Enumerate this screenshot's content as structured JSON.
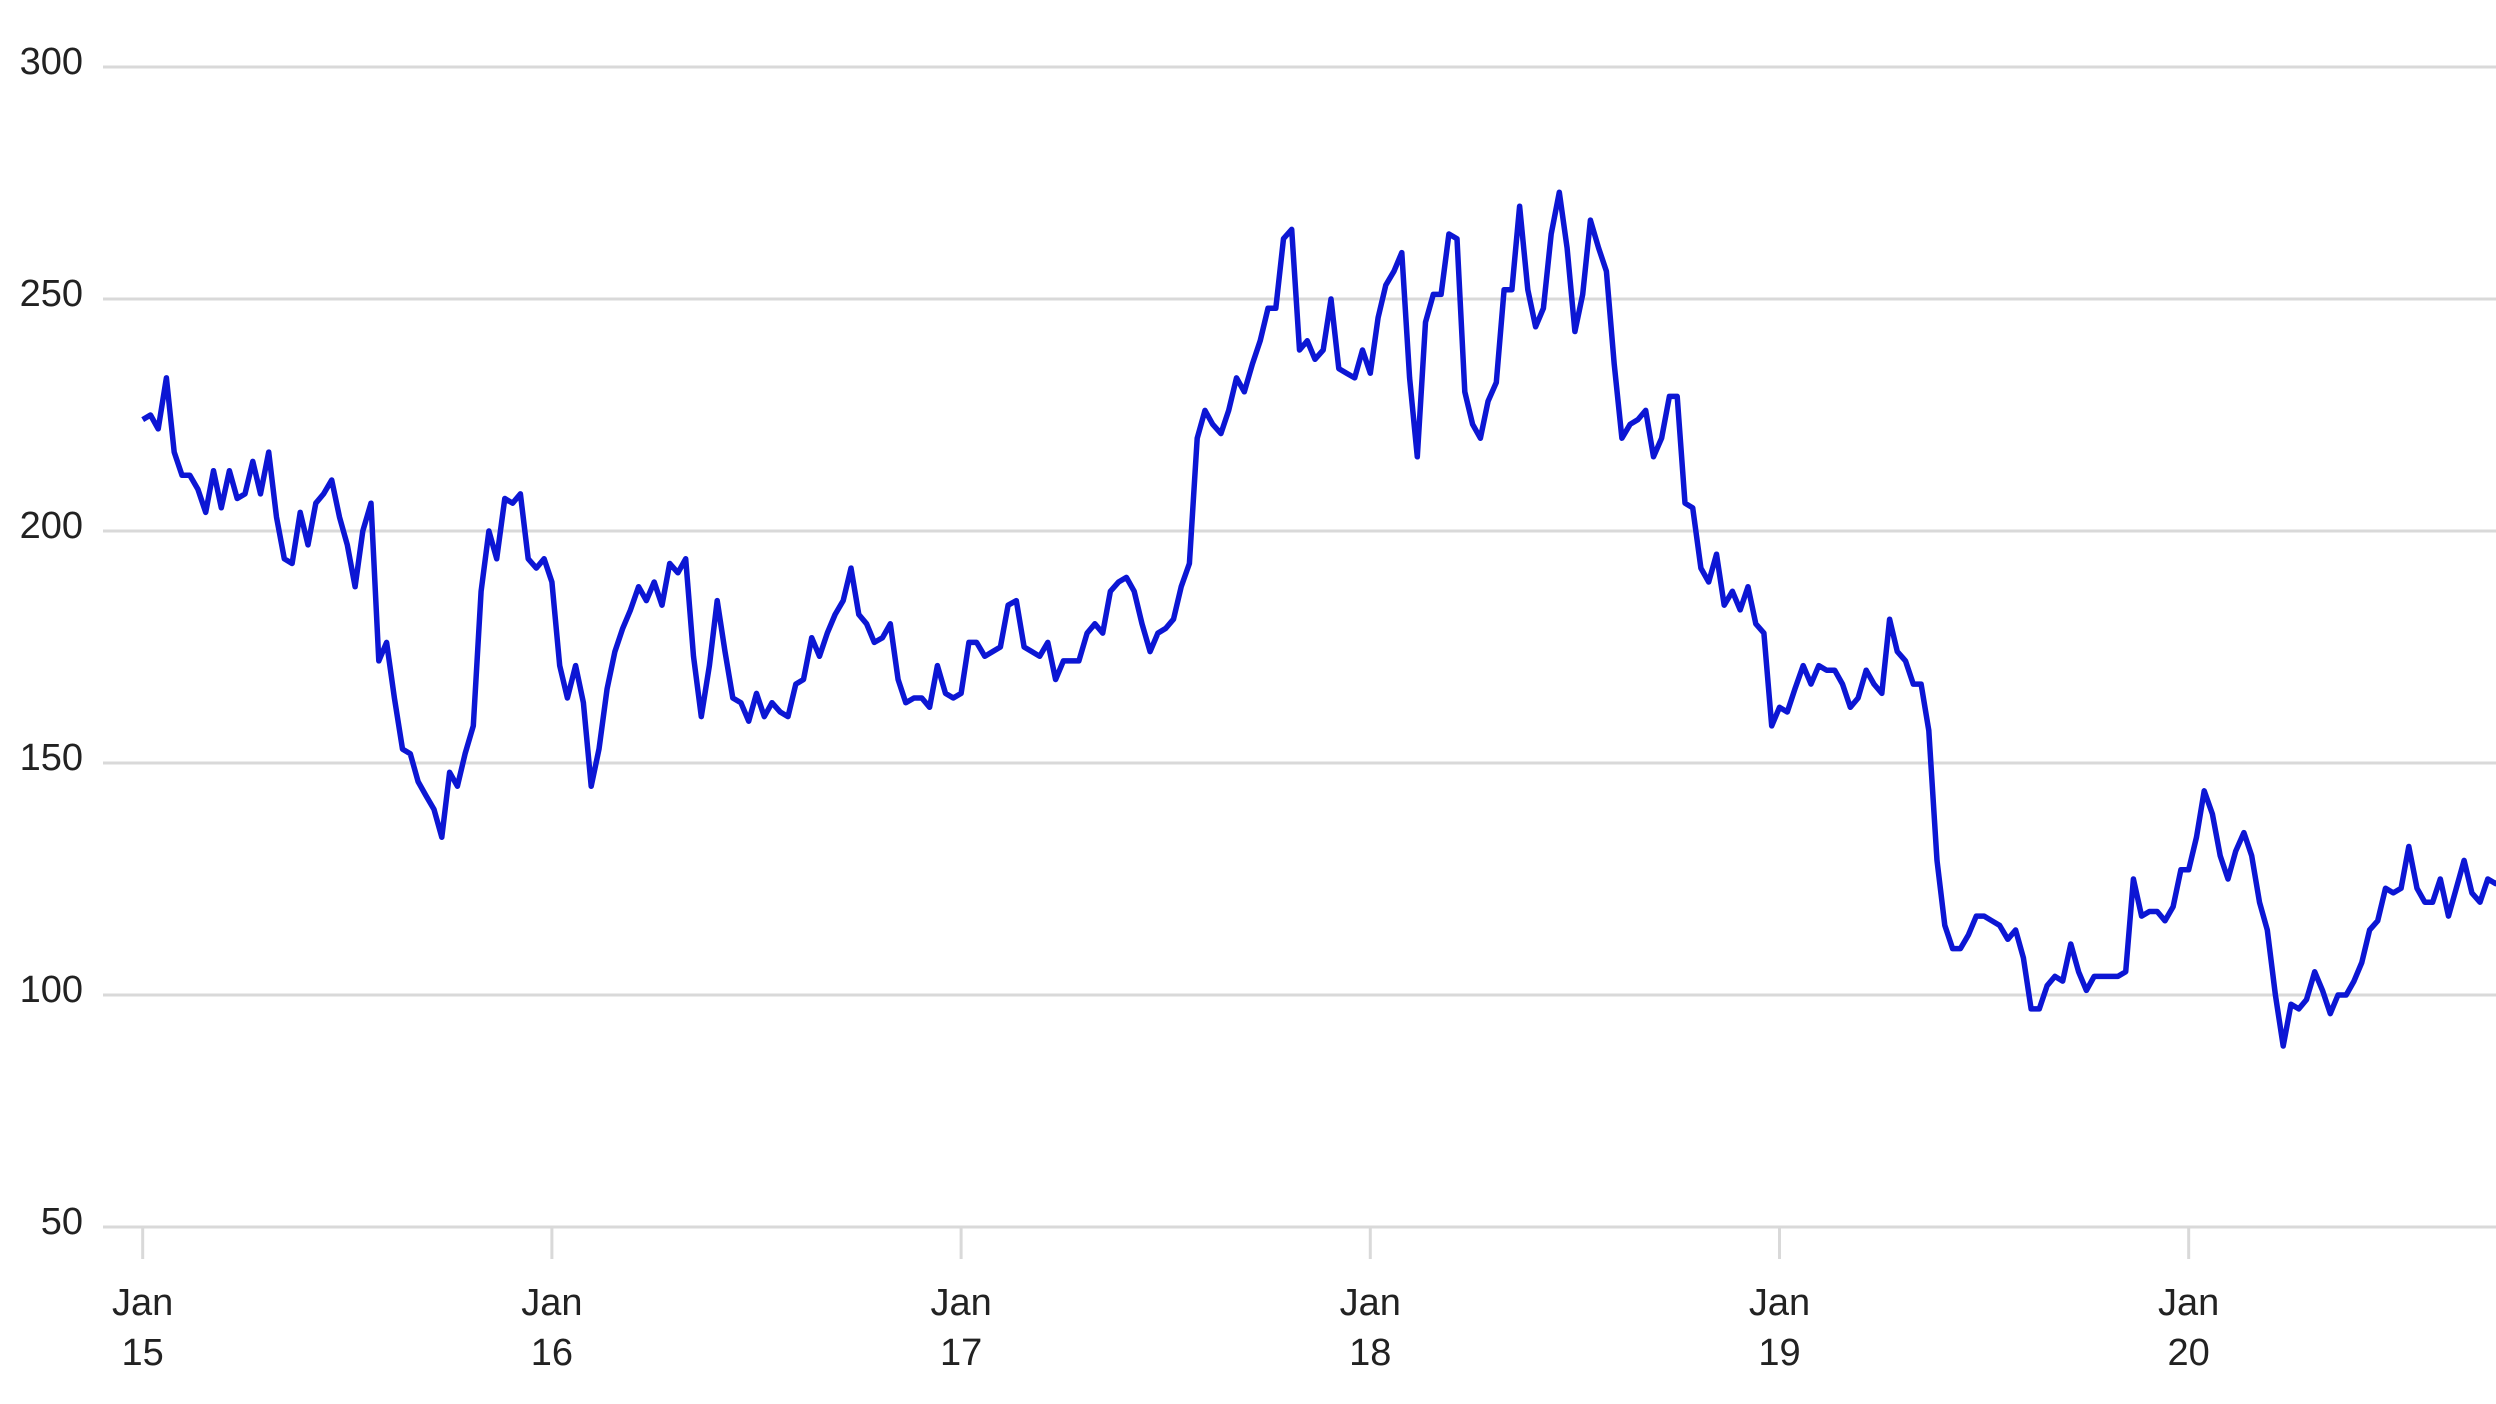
{
  "chart_data": {
    "type": "line",
    "color": "#0c16d4",
    "grid": true,
    "xlim": [
      2014.903,
      2020.751
    ],
    "ylim": [
      50,
      300
    ],
    "yticks": [
      50,
      100,
      150,
      200,
      250,
      300
    ],
    "xticks": [
      {
        "value": 2015,
        "label": "Jan 15"
      },
      {
        "value": 2016,
        "label": "Jan 16"
      },
      {
        "value": 2017,
        "label": "Jan 17"
      },
      {
        "value": 2018,
        "label": "Jan 18"
      },
      {
        "value": 2019,
        "label": "Jan 19"
      },
      {
        "value": 2020,
        "label": "Jan 20"
      }
    ],
    "x": [
      2015.0,
      2015.019,
      2015.038,
      2015.058,
      2015.077,
      2015.096,
      2015.115,
      2015.135,
      2015.154,
      2015.173,
      2015.192,
      2015.212,
      2015.231,
      2015.25,
      2015.269,
      2015.288,
      2015.308,
      2015.327,
      2015.346,
      2015.365,
      2015.385,
      2015.404,
      2015.423,
      2015.442,
      2015.462,
      2015.481,
      2015.5,
      2015.519,
      2015.538,
      2015.558,
      2015.577,
      2015.596,
      2015.615,
      2015.635,
      2015.654,
      2015.673,
      2015.692,
      2015.712,
      2015.731,
      2015.75,
      2015.769,
      2015.788,
      2015.808,
      2015.827,
      2015.846,
      2015.865,
      2015.885,
      2015.904,
      2015.923,
      2015.942,
      2015.962,
      2015.981,
      2016.0,
      2016.019,
      2016.038,
      2016.058,
      2016.077,
      2016.096,
      2016.115,
      2016.135,
      2016.154,
      2016.173,
      2016.192,
      2016.212,
      2016.231,
      2016.25,
      2016.269,
      2016.288,
      2016.308,
      2016.327,
      2016.346,
      2016.365,
      2016.385,
      2016.404,
      2016.423,
      2016.442,
      2016.462,
      2016.481,
      2016.5,
      2016.519,
      2016.538,
      2016.558,
      2016.577,
      2016.596,
      2016.615,
      2016.635,
      2016.654,
      2016.673,
      2016.692,
      2016.712,
      2016.731,
      2016.75,
      2016.769,
      2016.788,
      2016.808,
      2016.827,
      2016.846,
      2016.865,
      2016.885,
      2016.904,
      2016.923,
      2016.942,
      2016.962,
      2016.981,
      2017.0,
      2017.019,
      2017.038,
      2017.058,
      2017.077,
      2017.096,
      2017.115,
      2017.135,
      2017.154,
      2017.173,
      2017.192,
      2017.212,
      2017.231,
      2017.25,
      2017.269,
      2017.288,
      2017.308,
      2017.327,
      2017.346,
      2017.365,
      2017.385,
      2017.404,
      2017.423,
      2017.442,
      2017.462,
      2017.481,
      2017.5,
      2017.519,
      2017.538,
      2017.558,
      2017.577,
      2017.596,
      2017.615,
      2017.635,
      2017.654,
      2017.673,
      2017.692,
      2017.712,
      2017.731,
      2017.75,
      2017.769,
      2017.788,
      2017.808,
      2017.827,
      2017.846,
      2017.865,
      2017.885,
      2017.904,
      2017.923,
      2017.942,
      2017.962,
      2017.981,
      2018.0,
      2018.019,
      2018.038,
      2018.058,
      2018.077,
      2018.096,
      2018.115,
      2018.135,
      2018.154,
      2018.173,
      2018.192,
      2018.212,
      2018.231,
      2018.25,
      2018.269,
      2018.288,
      2018.308,
      2018.327,
      2018.346,
      2018.365,
      2018.385,
      2018.404,
      2018.423,
      2018.442,
      2018.462,
      2018.481,
      2018.5,
      2018.519,
      2018.538,
      2018.558,
      2018.577,
      2018.596,
      2018.615,
      2018.635,
      2018.654,
      2018.673,
      2018.692,
      2018.712,
      2018.731,
      2018.75,
      2018.769,
      2018.788,
      2018.808,
      2018.827,
      2018.846,
      2018.865,
      2018.885,
      2018.904,
      2018.923,
      2018.942,
      2018.962,
      2018.981,
      2019.0,
      2019.019,
      2019.038,
      2019.058,
      2019.077,
      2019.096,
      2019.115,
      2019.135,
      2019.154,
      2019.173,
      2019.192,
      2019.212,
      2019.231,
      2019.25,
      2019.269,
      2019.288,
      2019.308,
      2019.327,
      2019.346,
      2019.365,
      2019.385,
      2019.404,
      2019.423,
      2019.442,
      2019.462,
      2019.481,
      2019.5,
      2019.519,
      2019.538,
      2019.558,
      2019.577,
      2019.596,
      2019.615,
      2019.635,
      2019.654,
      2019.673,
      2019.692,
      2019.712,
      2019.731,
      2019.75,
      2019.769,
      2019.788,
      2019.808,
      2019.827,
      2019.846,
      2019.865,
      2019.885,
      2019.904,
      2019.923,
      2019.942,
      2019.962,
      2019.981,
      2020.0,
      2020.019,
      2020.038,
      2020.058,
      2020.077,
      2020.096,
      2020.115,
      2020.135,
      2020.154,
      2020.173,
      2020.192,
      2020.212,
      2020.231,
      2020.25,
      2020.269,
      2020.288,
      2020.308,
      2020.327,
      2020.346,
      2020.365,
      2020.385,
      2020.404,
      2020.423,
      2020.442,
      2020.462,
      2020.481,
      2020.5,
      2020.519,
      2020.538,
      2020.558,
      2020.577,
      2020.596,
      2020.615,
      2020.635,
      2020.654,
      2020.673,
      2020.692,
      2020.712,
      2020.731,
      2020.75,
      2020.769
    ],
    "values": [
      224,
      225,
      222,
      233,
      217,
      212,
      212,
      209,
      204,
      213,
      205,
      213,
      207,
      208,
      215,
      208,
      217,
      203,
      194,
      193,
      204,
      197,
      206,
      208,
      211,
      203,
      197,
      188,
      200,
      206,
      172,
      176,
      164,
      153,
      152,
      146,
      143,
      140,
      134,
      148,
      145,
      152,
      158,
      187,
      200,
      194,
      207,
      206,
      208,
      194,
      192,
      194,
      189,
      171,
      164,
      171,
      163,
      145,
      153,
      166,
      174,
      179,
      183,
      188,
      185,
      189,
      184,
      193,
      191,
      194,
      173,
      160,
      171,
      185,
      174,
      164,
      163,
      159,
      165,
      160,
      163,
      161,
      160,
      167,
      168,
      177,
      173,
      178,
      182,
      185,
      192,
      182,
      180,
      176,
      177,
      180,
      168,
      163,
      164,
      164,
      162,
      171,
      165,
      164,
      165,
      176,
      176,
      173,
      174,
      175,
      184,
      185,
      175,
      174,
      173,
      176,
      168,
      172,
      172,
      172,
      178,
      180,
      178,
      187,
      189,
      190,
      187,
      180,
      174,
      178,
      179,
      181,
      188,
      193,
      220,
      226,
      223,
      221,
      226,
      233,
      230,
      236,
      241,
      248,
      248,
      263,
      265,
      239,
      241,
      237,
      239,
      250,
      235,
      234,
      233,
      239,
      234,
      246,
      253,
      256,
      260,
      233,
      216,
      245,
      251,
      251,
      264,
      263,
      230,
      223,
      220,
      228,
      232,
      252,
      252,
      270,
      252,
      244,
      248,
      264,
      273,
      261,
      243,
      251,
      267,
      261,
      256,
      236,
      220,
      223,
      224,
      226,
      216,
      220,
      229,
      229,
      206,
      205,
      192,
      189,
      195,
      184,
      187,
      183,
      188,
      180,
      178,
      158,
      162,
      161,
      166,
      171,
      167,
      171,
      170,
      170,
      167,
      162,
      164,
      170,
      167,
      165,
      181,
      174,
      172,
      167,
      167,
      157,
      129,
      115,
      110,
      110,
      113,
      117,
      117,
      116,
      115,
      112,
      114,
      108,
      97,
      97,
      102,
      104,
      103,
      111,
      105,
      101,
      104,
      104,
      104,
      104,
      105,
      125,
      117,
      118,
      118,
      116,
      119,
      127,
      127,
      134,
      144,
      139,
      130,
      125,
      131,
      135,
      130,
      120,
      114,
      100,
      89,
      98,
      97,
      99,
      105,
      101,
      96,
      100,
      100,
      103,
      107,
      114,
      116,
      123,
      122,
      123,
      132,
      123,
      120,
      120,
      125,
      117,
      123,
      129,
      122,
      120,
      125,
      124,
      125
    ]
  }
}
